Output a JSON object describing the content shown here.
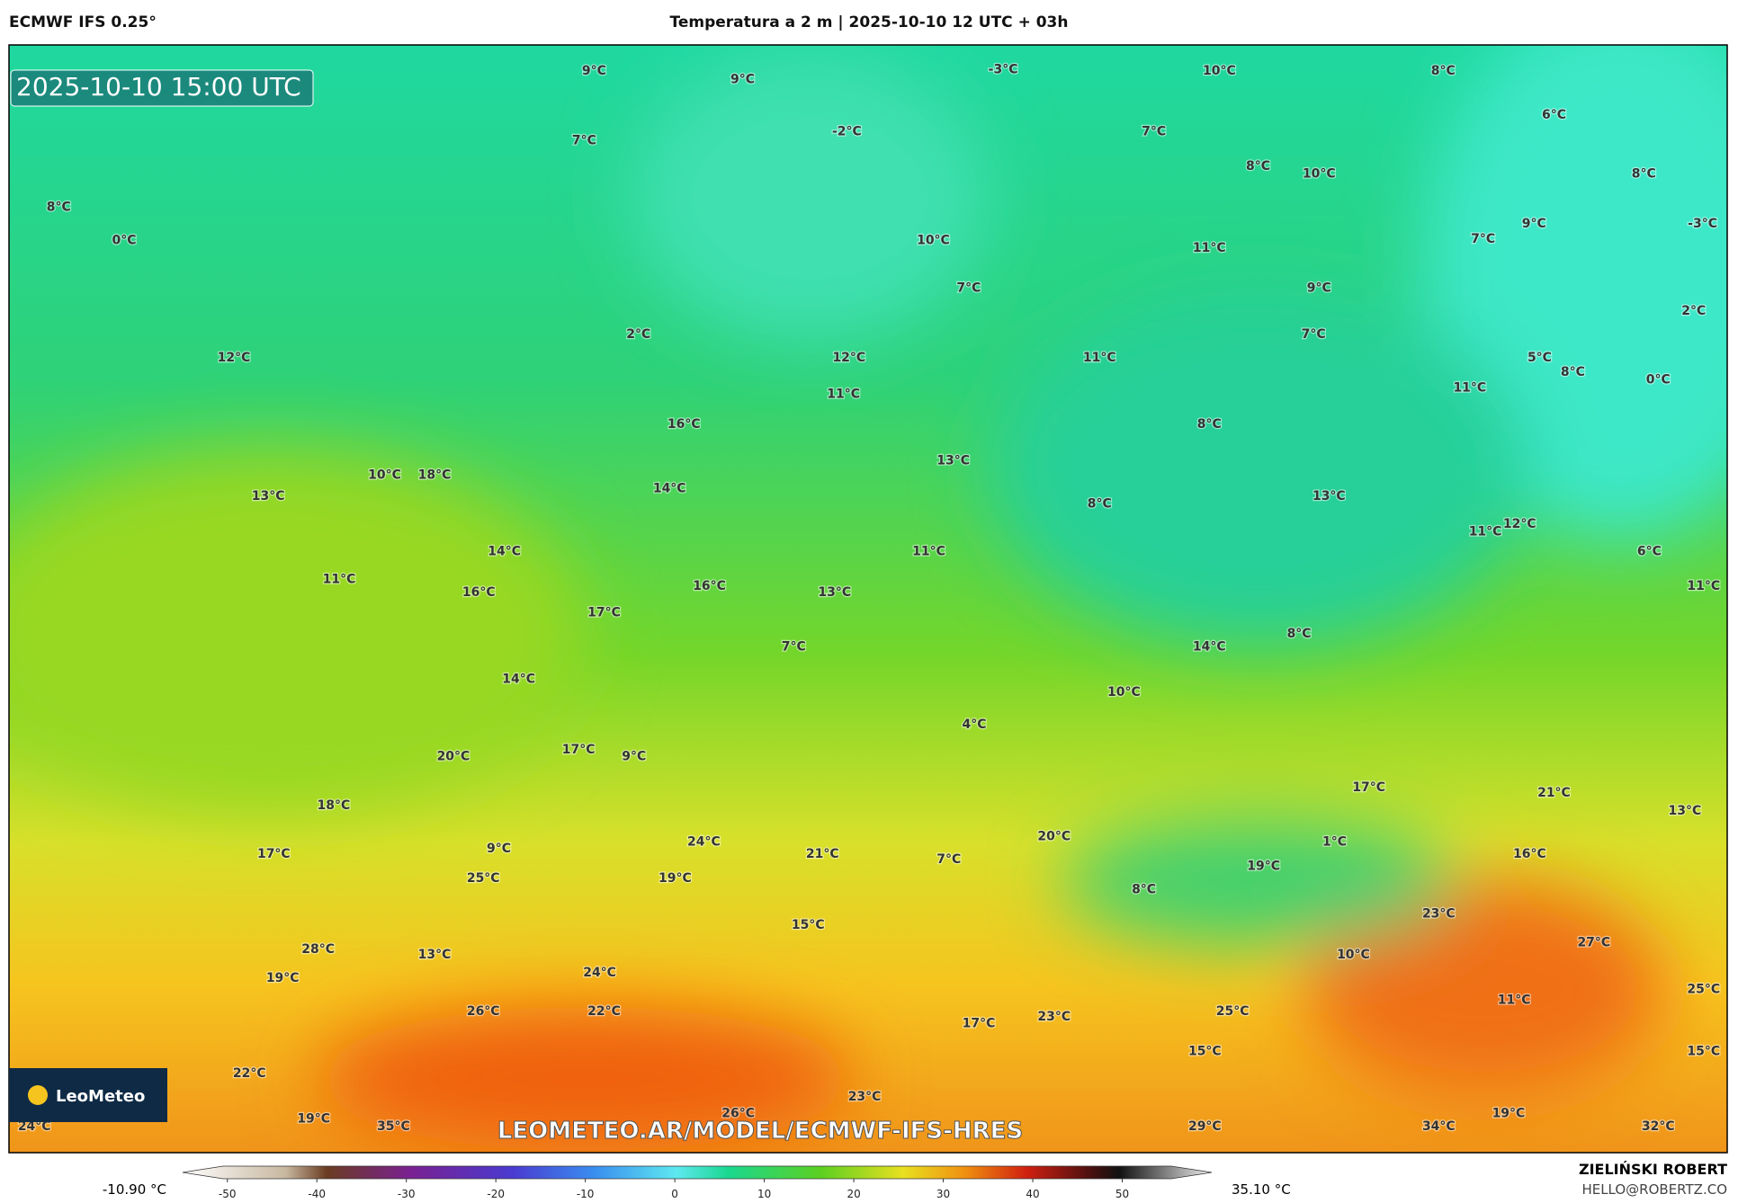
{
  "header": {
    "model": "ECMWF IFS 0.25°",
    "title": "Temperatura a 2 m | 2025-10-10 12 UTC + 03h"
  },
  "map": {
    "valid_time": "2025-10-10 15:00 UTC",
    "watermark": "LEOMETEO.AR/MODEL/ECMWF-IFS-HRES",
    "logo": "LeoMeteo",
    "labels": [
      "9°C",
      "9°C",
      "-3°C",
      "10°C",
      "8°C",
      "6°C",
      "7°C",
      "-2°C",
      "7°C",
      "8°C",
      "10°C",
      "8°C",
      "8°C",
      "0°C",
      "10°C",
      "11°C",
      "7°C",
      "9°C",
      "-3°C",
      "7°C",
      "9°C",
      "2°C",
      "2°C",
      "7°C",
      "12°C",
      "12°C",
      "11°C",
      "5°C",
      "8°C",
      "0°C",
      "11°C",
      "11°C",
      "16°C",
      "8°C",
      "13°C",
      "10°C",
      "18°C",
      "14°C",
      "13°C",
      "13°C",
      "8°C",
      "11°C",
      "12°C",
      "14°C",
      "11°C",
      "6°C",
      "11°C",
      "16°C",
      "16°C",
      "13°C",
      "11°C",
      "17°C",
      "8°C",
      "14°C",
      "7°C",
      "14°C",
      "10°C",
      "4°C",
      "17°C",
      "9°C",
      "20°C",
      "17°C",
      "21°C",
      "18°C",
      "13°C",
      "20°C",
      "1°C",
      "9°C",
      "24°C",
      "21°C",
      "7°C",
      "17°C",
      "16°C",
      "19°C",
      "25°C",
      "19°C",
      "8°C",
      "23°C",
      "15°C",
      "27°C",
      "28°C",
      "13°C",
      "10°C",
      "24°C",
      "19°C",
      "25°C",
      "11°C",
      "26°C",
      "22°C",
      "25°C",
      "23°C",
      "17°C",
      "15°C",
      "15°C",
      "22°C",
      "23°C",
      "26°C",
      "19°C",
      "19°C",
      "24°C",
      "35°C",
      "29°C",
      "34°C",
      "32°C"
    ]
  },
  "colorbar": {
    "min_label": "-10.90 °C",
    "max_label": "35.10 °C",
    "lim": [
      -55,
      60
    ],
    "ticks": [
      -50,
      -40,
      -30,
      -20,
      -10,
      0,
      10,
      20,
      30,
      40,
      50
    ]
  },
  "footer": {
    "author": "ZIELIŃSKI ROBERT",
    "contact": "HELLO@ROBERTZ.CO"
  }
}
